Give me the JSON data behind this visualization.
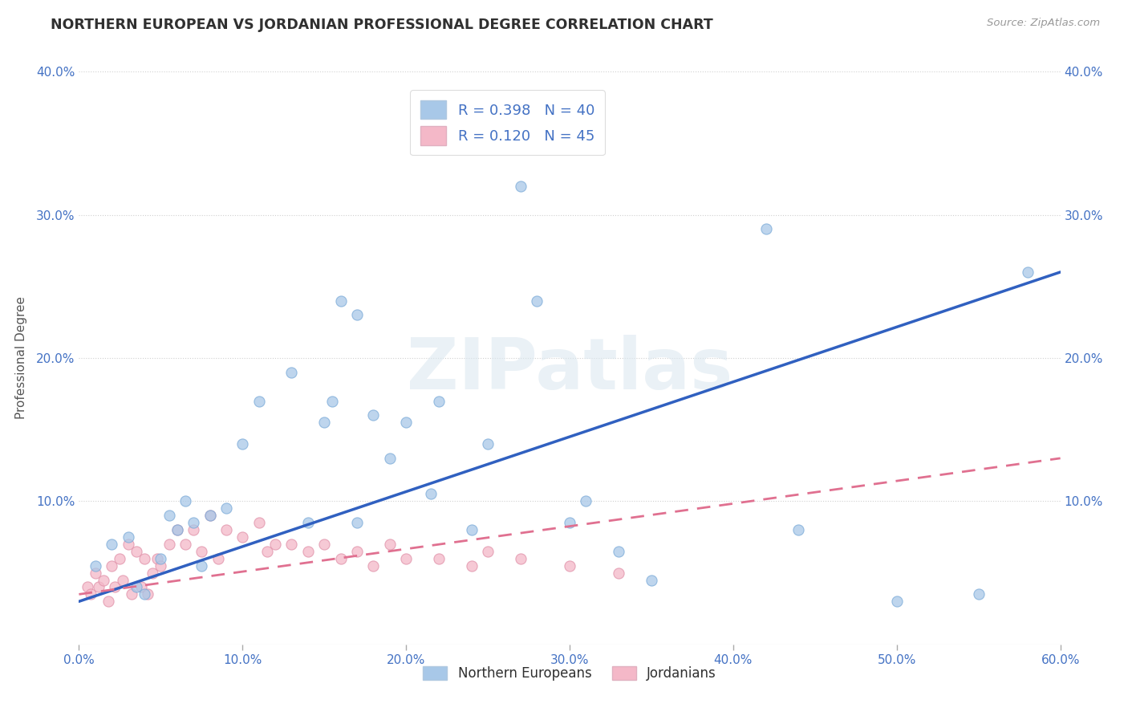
{
  "title": "NORTHERN EUROPEAN VS JORDANIAN PROFESSIONAL DEGREE CORRELATION CHART",
  "source": "Source: ZipAtlas.com",
  "xlabel": "",
  "ylabel": "Professional Degree",
  "watermark": "ZIPatlas",
  "xlim": [
    0.0,
    0.6
  ],
  "ylim": [
    0.0,
    0.4
  ],
  "xtick_labels": [
    "0.0%",
    "10.0%",
    "20.0%",
    "30.0%",
    "40.0%",
    "50.0%",
    "60.0%"
  ],
  "xtick_vals": [
    0.0,
    0.1,
    0.2,
    0.3,
    0.4,
    0.5,
    0.6
  ],
  "ytick_labels": [
    "10.0%",
    "20.0%",
    "30.0%",
    "40.0%"
  ],
  "ytick_vals": [
    0.1,
    0.2,
    0.3,
    0.4
  ],
  "blue_R": 0.398,
  "blue_N": 40,
  "pink_R": 0.12,
  "pink_N": 45,
  "blue_color": "#a8c8e8",
  "pink_color": "#f4b8c8",
  "blue_line_color": "#3060c0",
  "pink_line_color": "#e07090",
  "grid_color": "#d0d0d0",
  "title_color": "#303030",
  "axis_color": "#4472c4",
  "legend_text_color": "#4472c4",
  "blue_scatter_x": [
    0.01,
    0.02,
    0.03,
    0.035,
    0.04,
    0.05,
    0.055,
    0.06,
    0.065,
    0.07,
    0.075,
    0.08,
    0.09,
    0.1,
    0.11,
    0.13,
    0.14,
    0.15,
    0.155,
    0.16,
    0.17,
    0.17,
    0.18,
    0.19,
    0.2,
    0.215,
    0.22,
    0.24,
    0.25,
    0.27,
    0.28,
    0.3,
    0.31,
    0.33,
    0.35,
    0.42,
    0.44,
    0.5,
    0.55,
    0.58
  ],
  "blue_scatter_y": [
    0.055,
    0.07,
    0.075,
    0.04,
    0.035,
    0.06,
    0.09,
    0.08,
    0.1,
    0.085,
    0.055,
    0.09,
    0.095,
    0.14,
    0.17,
    0.19,
    0.085,
    0.155,
    0.17,
    0.24,
    0.085,
    0.23,
    0.16,
    0.13,
    0.155,
    0.105,
    0.17,
    0.08,
    0.14,
    0.32,
    0.24,
    0.085,
    0.1,
    0.065,
    0.045,
    0.29,
    0.08,
    0.03,
    0.035,
    0.26
  ],
  "pink_scatter_x": [
    0.005,
    0.007,
    0.01,
    0.012,
    0.015,
    0.018,
    0.02,
    0.022,
    0.025,
    0.027,
    0.03,
    0.032,
    0.035,
    0.038,
    0.04,
    0.042,
    0.045,
    0.048,
    0.05,
    0.055,
    0.06,
    0.065,
    0.07,
    0.075,
    0.08,
    0.085,
    0.09,
    0.1,
    0.11,
    0.115,
    0.12,
    0.13,
    0.14,
    0.15,
    0.16,
    0.17,
    0.18,
    0.19,
    0.2,
    0.22,
    0.24,
    0.25,
    0.27,
    0.3,
    0.33
  ],
  "pink_scatter_y": [
    0.04,
    0.035,
    0.05,
    0.04,
    0.045,
    0.03,
    0.055,
    0.04,
    0.06,
    0.045,
    0.07,
    0.035,
    0.065,
    0.04,
    0.06,
    0.035,
    0.05,
    0.06,
    0.055,
    0.07,
    0.08,
    0.07,
    0.08,
    0.065,
    0.09,
    0.06,
    0.08,
    0.075,
    0.085,
    0.065,
    0.07,
    0.07,
    0.065,
    0.07,
    0.06,
    0.065,
    0.055,
    0.07,
    0.06,
    0.06,
    0.055,
    0.065,
    0.06,
    0.055,
    0.05
  ],
  "blue_line_x": [
    0.0,
    0.6
  ],
  "blue_line_y": [
    0.03,
    0.26
  ],
  "pink_line_x": [
    0.0,
    0.6
  ],
  "pink_line_y": [
    0.035,
    0.13
  ],
  "background_color": "#ffffff"
}
